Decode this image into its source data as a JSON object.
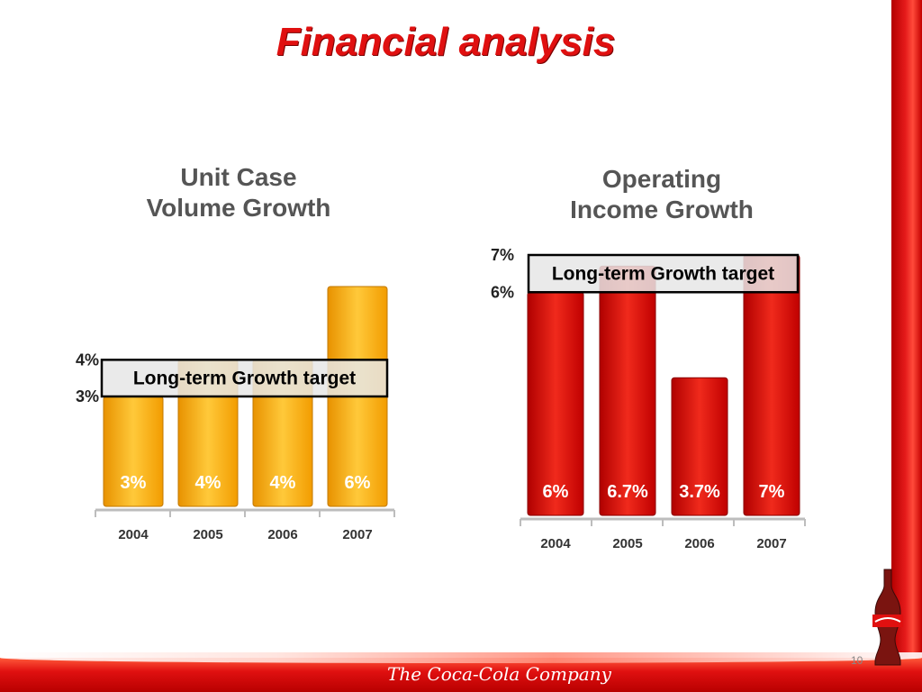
{
  "slide": {
    "title": "Financial analysis",
    "page_number": "10",
    "company": "The Coca-Cola Company",
    "colors": {
      "title": "#e01010",
      "unit_case_bar": "#f5a800",
      "operating_bar": "#d80f0f",
      "target_band": "#e6e6e6"
    }
  },
  "chart_data": [
    {
      "type": "bar",
      "title_line1": "Unit Case",
      "title_line2": "Volume Growth",
      "categories": [
        "2004",
        "2005",
        "2006",
        "2007"
      ],
      "values": [
        3,
        4,
        4,
        6
      ],
      "value_labels": [
        "3%",
        "4%",
        "4%",
        "6%"
      ],
      "target_band": {
        "low": 3,
        "high": 4,
        "label": "Long-term Growth target",
        "low_label": "3%",
        "high_label": "4%"
      },
      "ylim": [
        0,
        6.5
      ]
    },
    {
      "type": "bar",
      "title_line1": "Operating",
      "title_line2": "Income Growth",
      "categories": [
        "2004",
        "2005",
        "2006",
        "2007"
      ],
      "values": [
        6,
        6.7,
        3.7,
        7
      ],
      "value_labels": [
        "6%",
        "6.7%",
        "3.7%",
        "7%"
      ],
      "target_band": {
        "low": 6,
        "high": 7,
        "label": "Long-term Growth target",
        "low_label": "6%",
        "high_label": "7%"
      },
      "ylim": [
        0,
        7.2
      ]
    }
  ]
}
